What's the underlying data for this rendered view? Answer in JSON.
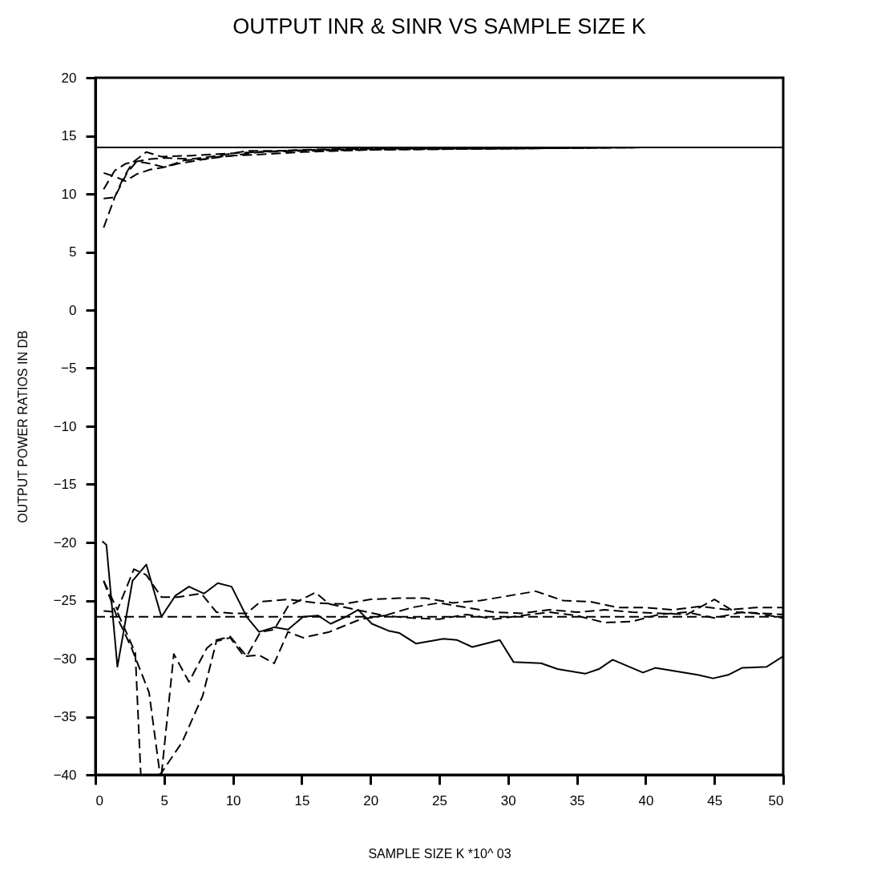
{
  "chart_data": {
    "type": "line",
    "title": "OUTPUT INR & SINR VS SAMPLE SIZE K",
    "xlabel": "SAMPLE SIZE K *10^ 03",
    "ylabel": "OUTPUT POWER RATIOS IN DB",
    "xlim": [
      0,
      50
    ],
    "xticks": [
      0,
      5,
      10,
      15,
      20,
      25,
      30,
      35,
      40,
      45,
      50
    ],
    "ylim": [
      -40,
      20
    ],
    "yticks": [
      -40,
      -35,
      -30,
      -25,
      -20,
      -15,
      -10,
      -5,
      0,
      5,
      10,
      15,
      20
    ],
    "ref_lines": [
      {
        "axis": "y",
        "value": 14,
        "color": "#000000",
        "line_style": "solid"
      },
      {
        "axis": "y",
        "value": -26.4,
        "color": "#000000",
        "line_style": "dashed"
      }
    ],
    "series": [
      {
        "color": "#000000",
        "line_style": "dashed",
        "x": [
          0.6,
          1.4,
          2.0,
          2.7,
          3.7,
          4.8,
          7,
          10,
          15,
          25,
          50
        ],
        "values": [
          7.1,
          9.7,
          11.3,
          12.7,
          13.6,
          13.2,
          13.3,
          13.5,
          13.8,
          14.0,
          14.0
        ]
      },
      {
        "color": "#000000",
        "line_style": "dashed",
        "x": [
          0.6,
          1.4,
          2.3,
          3.0,
          4,
          5,
          6.5,
          8,
          10,
          12,
          15,
          20,
          30,
          40,
          50
        ],
        "values": [
          9.6,
          9.7,
          11.8,
          12.8,
          12.6,
          12.3,
          12.9,
          13.0,
          13.3,
          13.6,
          13.7,
          13.8,
          13.9,
          14.0,
          14.0
        ]
      },
      {
        "color": "#000000",
        "line_style": "dashed",
        "x": [
          0.6,
          1.4,
          2.2,
          3.0,
          4,
          5,
          7,
          9,
          11,
          13,
          16,
          20,
          30,
          40,
          50
        ],
        "values": [
          10.4,
          12.0,
          12.6,
          12.8,
          13.0,
          13.1,
          13.0,
          13.3,
          13.7,
          13.7,
          13.8,
          13.9,
          13.9,
          14.0,
          14.0
        ]
      },
      {
        "color": "#000000",
        "line_style": "dashed",
        "x": [
          0.6,
          1.4,
          2.2,
          3.0,
          4,
          5,
          6,
          7,
          8,
          9,
          10,
          12,
          15,
          20,
          30,
          40,
          50
        ],
        "values": [
          11.8,
          11.5,
          11.1,
          11.7,
          12.1,
          12.3,
          12.6,
          12.8,
          13.0,
          13.2,
          13.3,
          13.4,
          13.6,
          13.8,
          13.9,
          14.0,
          14.0
        ]
      },
      {
        "color": "#000000",
        "line_style": "solid",
        "x": [
          0.5,
          0.8,
          1.6,
          2.7,
          3.7,
          4.8,
          5.8,
          6.8,
          7.9,
          8.9,
          9.9,
          11.0,
          11.9,
          13.0,
          14.0,
          15.1,
          16.2,
          17.1,
          18.2,
          19.1,
          20.1,
          21.3,
          22.1,
          23.3,
          25.3,
          26.3,
          27.4,
          29.4,
          30.4,
          32.4,
          33.6,
          35.6,
          36.6,
          37.6,
          39.8,
          40.7,
          43.8,
          44.9,
          46.0,
          47.0,
          48.8,
          50
        ],
        "values": [
          -19.9,
          -20.2,
          -30.7,
          -23.3,
          -21.9,
          -26.4,
          -24.6,
          -23.8,
          -24.4,
          -23.5,
          -23.8,
          -26.4,
          -27.7,
          -27.3,
          -27.5,
          -26.4,
          -26.3,
          -27.0,
          -26.4,
          -25.8,
          -27.0,
          -27.6,
          -27.8,
          -28.7,
          -28.3,
          -28.4,
          -29.0,
          -28.4,
          -30.3,
          -30.4,
          -30.9,
          -31.3,
          -30.9,
          -30.1,
          -31.2,
          -30.8,
          -31.4,
          -31.7,
          -31.4,
          -30.8,
          -30.7,
          -29.8
        ]
      },
      {
        "color": "#000000",
        "line_style": "dashed",
        "x": [
          0.6,
          1.6,
          2.8,
          3.7,
          4.8,
          6,
          7.7,
          8.8,
          10,
          11,
          12,
          14,
          16,
          18,
          20,
          22,
          24,
          26,
          28,
          30,
          32,
          34,
          36,
          38,
          40,
          42,
          44,
          46,
          48,
          50
        ],
        "values": [
          -23.3,
          -25.8,
          -22.3,
          -22.8,
          -24.7,
          -24.7,
          -24.4,
          -26.0,
          -26.1,
          -26.1,
          -25.1,
          -24.9,
          -25.2,
          -25.3,
          -24.9,
          -24.8,
          -24.8,
          -25.2,
          -25.0,
          -24.6,
          -24.2,
          -25.0,
          -25.1,
          -25.6,
          -25.6,
          -25.8,
          -25.5,
          -25.8,
          -25.6,
          -25.6
        ]
      },
      {
        "color": "#000000",
        "line_style": "dashed",
        "x": [
          0.6,
          1.6,
          2.9,
          3.3,
          4.8,
          5.7,
          6.8,
          8.1,
          8.8,
          9.8,
          11.0,
          12.0,
          13.0,
          14,
          15,
          16,
          17,
          19,
          21,
          23,
          25,
          27,
          29,
          31,
          33,
          35,
          37,
          39,
          41,
          43,
          45,
          46.5,
          48,
          50
        ],
        "values": [
          -25.9,
          -26.0,
          -29.5,
          -40,
          -40,
          -29.6,
          -32.0,
          -29.1,
          -28.4,
          -28.1,
          -29.8,
          -27.7,
          -27.5,
          -25.5,
          -24.9,
          -24.3,
          -25.3,
          -25.8,
          -26.3,
          -25.6,
          -25.2,
          -25.6,
          -26.0,
          -26.1,
          -25.8,
          -26.0,
          -25.8,
          -26.0,
          -26.1,
          -26.2,
          -24.9,
          -26.0,
          -26.1,
          -26.5
        ]
      },
      {
        "color": "#000000",
        "line_style": "dashed",
        "x": [
          0.6,
          1.6,
          2.6,
          3.9,
          4.7,
          6.3,
          7.8,
          8.8,
          9.8,
          10.8,
          11.9,
          13.0,
          14,
          15.1,
          17,
          19.3,
          21,
          23,
          25,
          27,
          29,
          31,
          33,
          35,
          37,
          39,
          41,
          43,
          45,
          47,
          50
        ],
        "values": [
          -23.3,
          -26.5,
          -29.0,
          -32.9,
          -40,
          -37.2,
          -33.2,
          -28.5,
          -28.2,
          -29.8,
          -29.7,
          -30.4,
          -27.7,
          -28.2,
          -27.7,
          -26.6,
          -26.3,
          -26.5,
          -26.6,
          -26.2,
          -26.6,
          -26.3,
          -26.0,
          -26.3,
          -26.9,
          -26.8,
          -26.2,
          -26.0,
          -26.5,
          -26.0,
          -26.2
        ]
      }
    ]
  }
}
